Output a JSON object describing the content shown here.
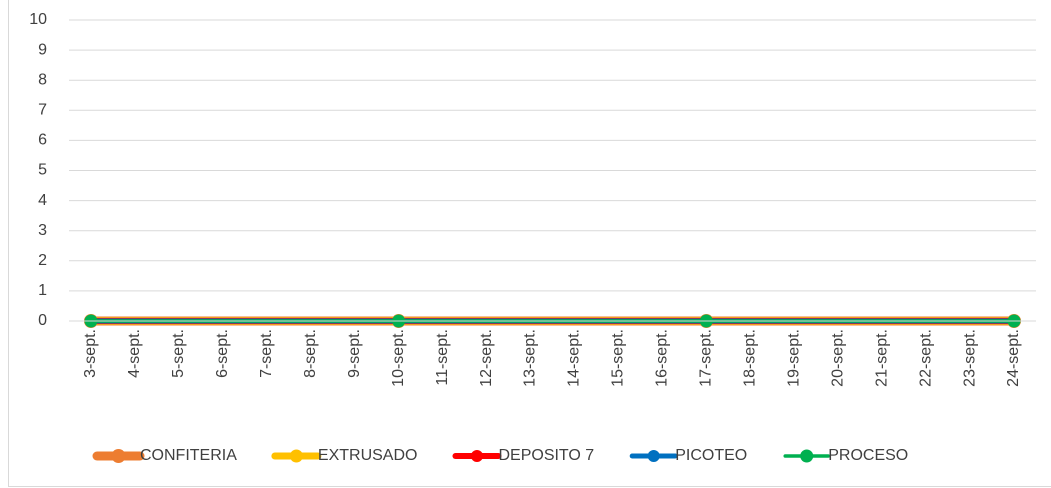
{
  "chart_data": {
    "type": "line",
    "categories": [
      "3-sept.",
      "4-sept.",
      "5-sept.",
      "6-sept.",
      "7-sept.",
      "8-sept.",
      "9-sept.",
      "10-sept.",
      "11-sept.",
      "12-sept.",
      "13-sept.",
      "14-sept.",
      "15-sept.",
      "16-sept.",
      "17-sept.",
      "18-sept.",
      "19-sept.",
      "20-sept.",
      "21-sept.",
      "22-sept.",
      "23-sept.",
      "24-sept."
    ],
    "x": [
      "3-sept.",
      "10-sept.",
      "17-sept.",
      "24-sept."
    ],
    "series": [
      {
        "name": "CONFITERIA",
        "color": "#ed7d31",
        "values": [
          0,
          0,
          0,
          0
        ]
      },
      {
        "name": "EXTRUSADO",
        "color": "#ffc000",
        "values": [
          0,
          0,
          0,
          0
        ]
      },
      {
        "name": "DEPOSITO 7",
        "color": "#ff0000",
        "values": [
          0,
          0,
          0,
          0
        ]
      },
      {
        "name": "PICOTEO",
        "color": "#0070c0",
        "values": [
          0,
          0,
          0,
          0
        ]
      },
      {
        "name": "PROCESO",
        "color": "#00b050",
        "values": [
          0,
          0,
          0,
          0
        ]
      }
    ],
    "ylim": [
      0,
      10
    ],
    "yticks": [
      0,
      1,
      2,
      3,
      4,
      5,
      6,
      7,
      8,
      9,
      10
    ],
    "grid": true,
    "legend": "bottom"
  }
}
